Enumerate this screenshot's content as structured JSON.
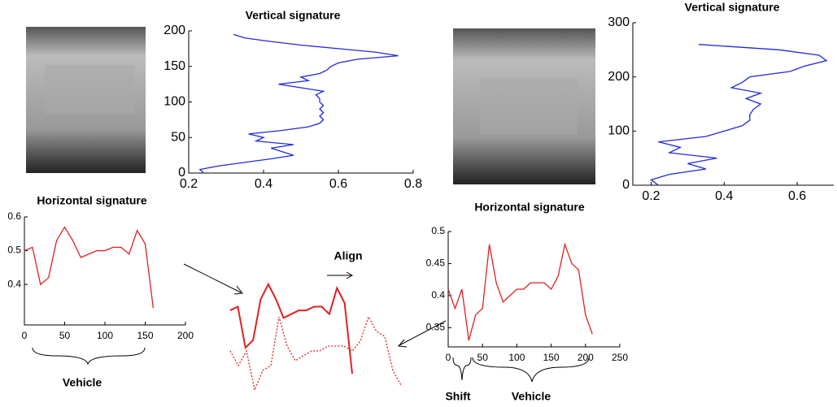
{
  "chart_data": [
    {
      "type": "line",
      "orientation": "vertical",
      "title": "Vertical signature",
      "xlim": [
        0.2,
        0.8
      ],
      "xticks": [
        0.2,
        0.4,
        0.6,
        0.8
      ],
      "ylim": [
        0,
        200
      ],
      "yticks": [
        0,
        50,
        100,
        150,
        200
      ],
      "series": [
        {
          "color": "#1f2bd6",
          "x": [
            0,
            5,
            10,
            15,
            20,
            25,
            30,
            35,
            40,
            45,
            50,
            55,
            60,
            65,
            70,
            75,
            80,
            85,
            90,
            95,
            100,
            105,
            110,
            115,
            120,
            125,
            130,
            135,
            140,
            145,
            150,
            155,
            160,
            165,
            170,
            175,
            180,
            185,
            190,
            195
          ],
          "values": [
            0.24,
            0.23,
            0.28,
            0.35,
            0.42,
            0.48,
            0.45,
            0.42,
            0.48,
            0.38,
            0.4,
            0.36,
            0.45,
            0.52,
            0.55,
            0.56,
            0.55,
            0.56,
            0.55,
            0.56,
            0.55,
            0.55,
            0.54,
            0.56,
            0.5,
            0.44,
            0.52,
            0.5,
            0.55,
            0.57,
            0.58,
            0.6,
            0.65,
            0.76,
            0.7,
            0.6,
            0.5,
            0.42,
            0.35,
            0.32
          ]
        }
      ]
    },
    {
      "type": "line",
      "orientation": "vertical",
      "title": "Vertical signature",
      "xlim": [
        0.15,
        0.7
      ],
      "xticks": [
        0.2,
        0.4,
        0.6
      ],
      "ylim": [
        0,
        300
      ],
      "yticks": [
        0,
        100,
        200,
        300
      ],
      "series": [
        {
          "color": "#1f2bd6",
          "x": [
            0,
            10,
            20,
            30,
            40,
            50,
            60,
            70,
            80,
            90,
            100,
            110,
            120,
            130,
            140,
            150,
            160,
            170,
            180,
            190,
            200,
            210,
            220,
            230,
            240,
            250,
            260
          ],
          "values": [
            0.22,
            0.2,
            0.25,
            0.35,
            0.3,
            0.38,
            0.25,
            0.28,
            0.22,
            0.35,
            0.4,
            0.45,
            0.47,
            0.47,
            0.48,
            0.5,
            0.46,
            0.5,
            0.42,
            0.45,
            0.47,
            0.58,
            0.62,
            0.68,
            0.66,
            0.55,
            0.33
          ]
        }
      ]
    },
    {
      "type": "line",
      "orientation": "horizontal",
      "title": "Horizontal signature",
      "xlim": [
        0,
        200
      ],
      "xticks": [
        0,
        50,
        100,
        150,
        200
      ],
      "ylim": [
        0.28,
        0.6
      ],
      "yticks": [
        0.4,
        0.5,
        0.6
      ],
      "annotations": [
        "Vehicle"
      ],
      "series": [
        {
          "color": "#e02020",
          "x": [
            0,
            10,
            20,
            30,
            40,
            50,
            60,
            70,
            80,
            90,
            100,
            110,
            120,
            130,
            140,
            150,
            160
          ],
          "values": [
            0.5,
            0.51,
            0.4,
            0.42,
            0.53,
            0.57,
            0.53,
            0.48,
            0.49,
            0.5,
            0.5,
            0.51,
            0.51,
            0.49,
            0.56,
            0.52,
            0.33
          ]
        }
      ]
    },
    {
      "type": "line",
      "orientation": "horizontal",
      "title": "Horizontal signature",
      "xlim": [
        0,
        250
      ],
      "xticks": [
        0,
        50,
        100,
        150,
        200,
        250
      ],
      "ylim": [
        0.32,
        0.5
      ],
      "yticks": [
        0.35,
        0.4,
        0.45,
        0.5
      ],
      "annotations": [
        "Shift",
        "Vehicle"
      ],
      "series": [
        {
          "color": "#e02020",
          "x": [
            0,
            10,
            20,
            30,
            40,
            50,
            60,
            70,
            80,
            90,
            100,
            110,
            120,
            130,
            140,
            150,
            160,
            170,
            180,
            190,
            200,
            210
          ],
          "values": [
            0.41,
            0.38,
            0.41,
            0.33,
            0.37,
            0.38,
            0.48,
            0.42,
            0.39,
            0.4,
            0.41,
            0.41,
            0.42,
            0.42,
            0.42,
            0.41,
            0.43,
            0.48,
            0.45,
            0.44,
            0.37,
            0.34
          ]
        }
      ]
    },
    {
      "type": "overlay",
      "annotations": [
        "Align"
      ],
      "series": [
        {
          "color": "#e02020",
          "dash": false,
          "x": [
            0,
            10,
            20,
            30,
            40,
            50,
            60,
            70,
            80,
            90,
            100,
            110,
            120,
            130,
            140,
            150,
            160
          ],
          "values": [
            0.5,
            0.51,
            0.4,
            0.42,
            0.53,
            0.57,
            0.53,
            0.48,
            0.49,
            0.5,
            0.5,
            0.51,
            0.51,
            0.49,
            0.56,
            0.52,
            0.33
          ]
        },
        {
          "color": "#e02020",
          "dash": true,
          "x": [
            0,
            10,
            20,
            30,
            40,
            50,
            60,
            70,
            80,
            90,
            100,
            110,
            120,
            130,
            140,
            150,
            160,
            170,
            180,
            190,
            200,
            210
          ],
          "values": [
            0.41,
            0.38,
            0.41,
            0.33,
            0.37,
            0.38,
            0.48,
            0.42,
            0.39,
            0.4,
            0.41,
            0.41,
            0.42,
            0.42,
            0.42,
            0.41,
            0.43,
            0.48,
            0.45,
            0.44,
            0.37,
            0.34
          ]
        }
      ]
    }
  ]
}
